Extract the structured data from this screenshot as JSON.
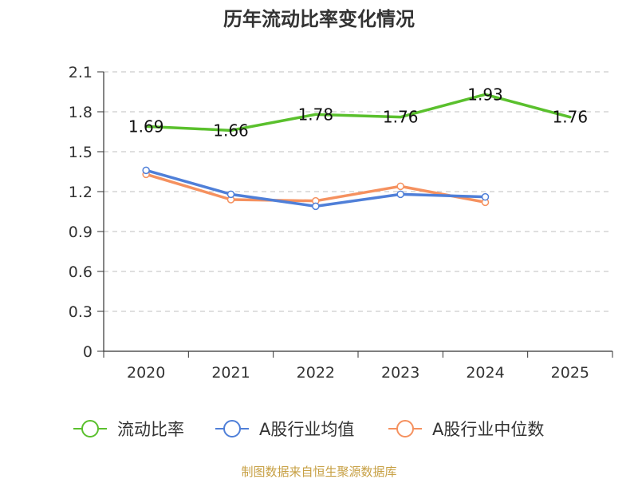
{
  "chart_data": {
    "type": "line",
    "title": "历年流动比率变化情况",
    "categories": [
      "2020",
      "2021",
      "2022",
      "2023",
      "2024",
      "2025"
    ],
    "ylim": [
      0,
      2.1
    ],
    "yticks": [
      "0",
      "0.3",
      "0.6",
      "0.9",
      "1.2",
      "1.5",
      "1.8",
      "2.1"
    ],
    "grid": true,
    "legend_position": "bottom",
    "series": [
      {
        "name": "流动比率",
        "color": "#5ac02d",
        "values": [
          1.69,
          1.66,
          1.78,
          1.76,
          1.93,
          1.76
        ],
        "labels": [
          "1.69",
          "1.66",
          "1.78",
          "1.76",
          "1.93",
          "1.76"
        ],
        "show_labels": true
      },
      {
        "name": "A股行业均值",
        "color": "#4f7fd8",
        "values": [
          1.36,
          1.18,
          1.09,
          1.18,
          1.16,
          null
        ],
        "show_labels": false
      },
      {
        "name": "A股行业中位数",
        "color": "#f5915f",
        "values": [
          1.33,
          1.14,
          1.13,
          1.24,
          1.12,
          null
        ],
        "show_labels": false
      }
    ],
    "source": "制图数据来自恒生聚源数据库"
  }
}
